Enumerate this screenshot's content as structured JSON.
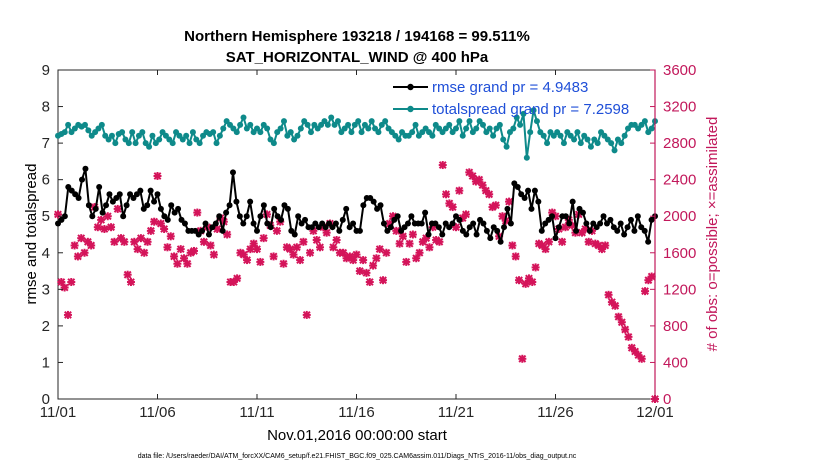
{
  "chart_data": {
    "type": "line",
    "title": "Northern Hemisphere 193218 / 194168 = 99.511%",
    "subtitle": "SAT_HORIZONTAL_WIND @ 400 hPa",
    "xlabel": "Nov.01,2016 00:00:00 start",
    "ylabel_left": "rmse and totalspread",
    "ylabel_right": "# of obs: o=possible; ×=assimilated",
    "footer": "data file: /Users/raeder/DAI/ATM_forcXX/CAM6_setup/f.e21.FHIST_BGC.f09_025.CAM6assim.011/Diags_NTrS_2016-11/obs_diag_output.nc",
    "xlim": [
      0,
      30
    ],
    "x_ticks": [
      0,
      5,
      10,
      15,
      20,
      25,
      30
    ],
    "x_tick_labels": [
      "11/01",
      "11/06",
      "11/11",
      "11/16",
      "11/21",
      "11/26",
      "12/01"
    ],
    "ylim_left": [
      0,
      9
    ],
    "y_ticks_left": [
      "0",
      "1",
      "2",
      "3",
      "4",
      "5",
      "6",
      "7",
      "8",
      "9"
    ],
    "ylim_right": [
      0,
      3600
    ],
    "y_ticks_right": [
      "0",
      "400",
      "800",
      "1200",
      "1600",
      "2000",
      "2400",
      "2800",
      "3200",
      "3600"
    ],
    "legend_position": "top-right",
    "colors": {
      "rmse": "#000000",
      "totalspread": "#0e8a8a",
      "obs": "#d4145a",
      "legend_text": "#1f4fd8",
      "right_axis": "#c2185b"
    },
    "series": [
      {
        "name": "rmse grand pr = 4.9483",
        "axis": "left",
        "values": [
          4.8,
          4.9,
          5.0,
          5.8,
          5.7,
          5.6,
          5.5,
          6.0,
          6.3,
          5.3,
          5.0,
          5.2,
          5.8,
          5.1,
          5.3,
          5.6,
          5.4,
          5.5,
          5.6,
          5.0,
          5.3,
          5.6,
          5.5,
          5.6,
          5.7,
          5.2,
          5.3,
          5.7,
          5.4,
          5.6,
          5.2,
          5.0,
          4.9,
          5.3,
          5.1,
          5.2,
          4.9,
          4.8,
          4.6,
          4.6,
          4.6,
          4.5,
          4.6,
          4.8,
          4.5,
          4.7,
          4.8,
          5.0,
          4.6,
          5.1,
          5.3,
          6.2,
          5.4,
          5.0,
          4.8,
          5.0,
          5.4,
          4.8,
          4.6,
          5.0,
          5.3,
          4.8,
          4.7,
          5.2,
          5.0,
          4.9,
          5.3,
          5.2,
          4.6,
          4.5,
          5.0,
          4.8,
          4.9,
          4.7,
          4.7,
          4.8,
          4.7,
          4.8,
          4.7,
          4.8,
          4.7,
          4.8,
          4.6,
          4.9,
          5.2,
          4.7,
          4.8,
          4.6,
          4.6,
          5.3,
          5.5,
          5.5,
          5.4,
          5.2,
          5.3,
          4.8,
          4.6,
          4.7,
          4.9,
          5.0,
          4.6,
          4.7,
          4.8,
          5.0,
          4.8,
          4.8,
          4.8,
          5.1,
          4.5,
          4.8,
          4.8,
          4.7,
          4.5,
          4.8,
          4.7,
          4.8,
          5.0,
          4.9,
          4.6,
          4.5,
          4.7,
          4.8,
          4.5,
          4.9,
          4.8,
          4.6,
          4.4,
          4.7,
          4.6,
          4.3,
          4.7,
          5.2,
          4.8,
          5.9,
          5.8,
          5.6,
          5.5,
          5.7,
          5.2,
          5.7,
          5.4,
          4.6,
          4.8,
          4.9,
          5.0,
          4.4,
          4.7,
          5.0,
          5.0,
          4.8,
          5.4,
          4.6,
          5.2,
          5.1,
          4.8,
          4.6,
          4.8,
          4.7,
          4.8,
          5.0,
          4.8,
          4.9,
          4.7,
          4.6,
          4.8,
          4.5,
          4.7,
          4.9,
          4.6,
          5.0,
          4.7,
          4.6,
          4.3,
          4.9,
          5.0
        ]
      },
      {
        "name": "totalspread grand pr = 7.2598",
        "axis": "left",
        "values": [
          7.2,
          7.25,
          7.3,
          7.5,
          7.3,
          7.4,
          7.5,
          7.45,
          7.5,
          7.35,
          7.2,
          7.3,
          7.4,
          7.5,
          7.2,
          7.1,
          7.2,
          7.0,
          7.25,
          7.3,
          7.1,
          7.0,
          7.3,
          7.0,
          7.2,
          7.3,
          7.0,
          6.9,
          7.2,
          7.0,
          7.1,
          7.3,
          7.2,
          7.1,
          7.0,
          7.3,
          7.2,
          7.1,
          7.2,
          7.0,
          7.3,
          7.1,
          7.0,
          7.2,
          7.3,
          7.25,
          7.3,
          7.0,
          7.2,
          7.4,
          7.6,
          7.5,
          7.4,
          7.3,
          7.5,
          7.7,
          7.4,
          7.5,
          7.3,
          7.4,
          7.3,
          7.5,
          7.4,
          7.1,
          7.0,
          7.3,
          7.4,
          7.6,
          7.2,
          7.3,
          7.1,
          7.2,
          7.4,
          7.6,
          7.5,
          7.3,
          7.5,
          7.4,
          7.5,
          7.6,
          7.5,
          7.7,
          7.5,
          7.6,
          7.3,
          7.4,
          7.5,
          7.3,
          7.5,
          7.6,
          7.3,
          7.5,
          7.4,
          7.6,
          7.4,
          7.3,
          7.5,
          7.6,
          7.4,
          7.3,
          7.2,
          7.1,
          7.3,
          7.2,
          7.2,
          7.3,
          7.5,
          7.2,
          7.3,
          7.4,
          7.3,
          7.2,
          7.5,
          7.4,
          7.3,
          7.4,
          7.5,
          7.3,
          7.4,
          7.6,
          7.2,
          7.4,
          7.6,
          7.3,
          7.4,
          7.6,
          7.5,
          7.3,
          7.4,
          7.2,
          7.4,
          7.5,
          7.1,
          6.9,
          7.3,
          7.4,
          7.7,
          7.5,
          7.8,
          6.6,
          7.3,
          7.9,
          7.6,
          7.3,
          7.2,
          7.0,
          7.3,
          7.2,
          7.3,
          7.2,
          7.0,
          7.3,
          7.2,
          7.1,
          7.3,
          7.0,
          7.2,
          7.1,
          6.9,
          7.1,
          7.0,
          7.3,
          7.2,
          7.1,
          7.0,
          6.8,
          7.1,
          7.0,
          7.2,
          7.4,
          7.5,
          7.5,
          7.4,
          7.5,
          7.6,
          7.3,
          7.4,
          7.6
        ]
      },
      {
        "name": "# of obs assimilated",
        "axis": "right",
        "values": [
          2020,
          1280,
          1220,
          920,
          1280,
          1680,
          1560,
          1760,
          1600,
          1720,
          1680,
          2100,
          1880,
          1960,
          1860,
          2000,
          1880,
          1720,
          2080,
          1760,
          1720,
          1360,
          1280,
          1720,
          1640,
          1760,
          1600,
          1720,
          1840,
          1940,
          2440,
          1920,
          1860,
          1660,
          1780,
          1560,
          1480,
          1640,
          1540,
          1480,
          1600,
          1620,
          2040,
          1840,
          1720,
          1880,
          1680,
          1580,
          1860,
          1980,
          1940,
          1800,
          1280,
          1280,
          1320,
          1600,
          1580,
          1520,
          1640,
          1700,
          1640,
          1500,
          1760,
          2020,
          1900,
          1560,
          1840,
          1940,
          1480,
          1660,
          1640,
          1580,
          1660,
          1520,
          1720,
          920,
          1600,
          1840,
          1740,
          1660,
          1880,
          1820,
          1920,
          1660,
          1740,
          1600,
          1600,
          1540,
          1560,
          1520,
          1580,
          1400,
          1520,
          1380,
          1280,
          1460,
          1540,
          1640,
          1300,
          1600,
          1920,
          2000,
          1840,
          1700,
          1780,
          1500,
          1700,
          1800,
          1540,
          1600,
          1720,
          1760,
          1660,
          1880,
          1740,
          1720,
          2560,
          2240,
          2140,
          2100,
          1880,
          2280,
          1980,
          2020,
          2480,
          2440,
          2380,
          2400,
          2340,
          2280,
          2240,
          2100,
          2120,
          1780,
          2000,
          1950,
          2160,
          1680,
          1560,
          1300,
          440,
          1260,
          1320,
          1280,
          1440,
          1700,
          1680,
          1640,
          1720,
          2040,
          2000,
          1860,
          1720,
          1880,
          1960,
          1900,
          1820,
          2020,
          1820,
          1860,
          1720,
          1840,
          1700,
          1680,
          1640,
          1680,
          1140,
          1060,
          1020,
          900,
          840,
          760,
          680,
          560,
          520,
          480,
          440,
          1180,
          1300,
          1340,
          0
        ]
      }
    ]
  }
}
